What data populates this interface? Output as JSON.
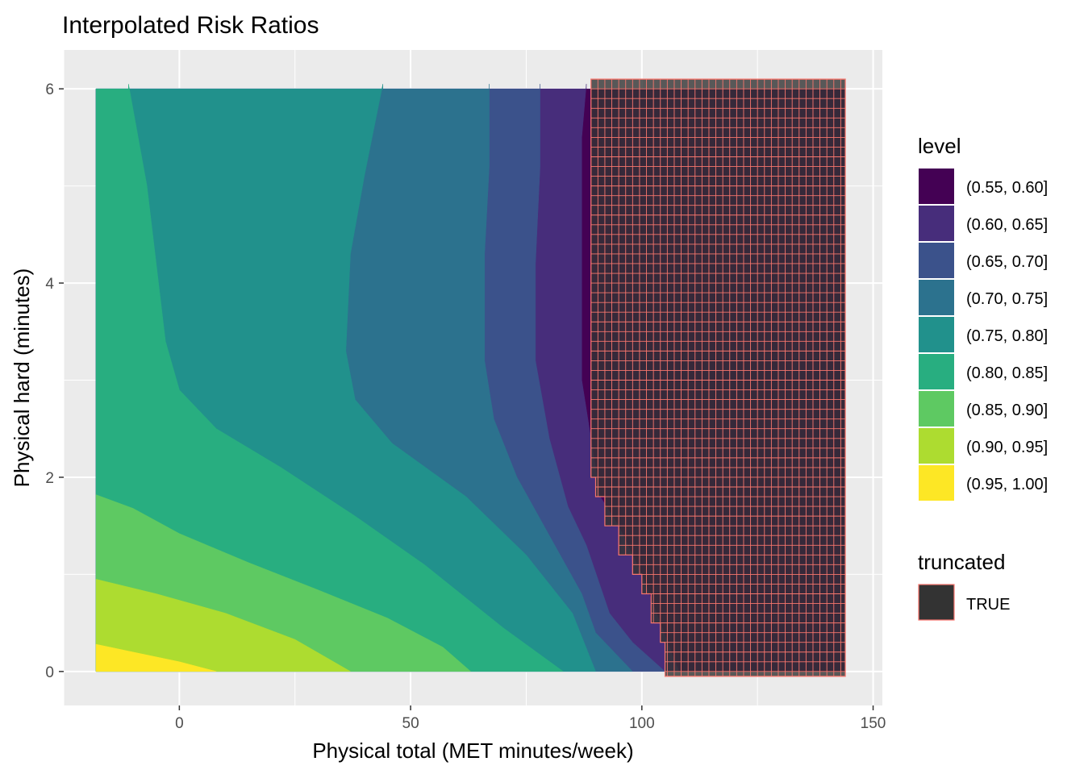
{
  "chart_data": {
    "type": "contour",
    "title": "Interpolated Risk Ratios",
    "xlabel": "Physical total (MET minutes/week)",
    "ylabel": "Physical hard (minutes)",
    "xlim": [
      -25,
      152
    ],
    "ylim": [
      -0.35,
      6.4
    ],
    "data_extent": {
      "x": [
        -18,
        144
      ],
      "y": [
        0,
        6
      ]
    },
    "x_ticks": [
      0,
      50,
      100,
      150
    ],
    "x_tick_labels": [
      "0",
      "50",
      "100",
      "150"
    ],
    "y_ticks": [
      0,
      2,
      4,
      6
    ],
    "y_tick_labels": [
      "0",
      "2",
      "4",
      "6"
    ],
    "grid": true,
    "panel_background": "#ebebeb",
    "legend_position": "right",
    "fill_legend": {
      "title": "level",
      "entries": [
        {
          "label": "(0.55, 0.60]",
          "color": "#440154"
        },
        {
          "label": "(0.60, 0.65]",
          "color": "#472d7b"
        },
        {
          "label": "(0.65, 0.70]",
          "color": "#3b528b"
        },
        {
          "label": "(0.70, 0.75]",
          "color": "#2c728e"
        },
        {
          "label": "(0.75, 0.80]",
          "color": "#21918c"
        },
        {
          "label": "(0.80, 0.85]",
          "color": "#28ae80"
        },
        {
          "label": "(0.85, 0.90]",
          "color": "#5ec962"
        },
        {
          "label": "(0.90, 0.95]",
          "color": "#addc30"
        },
        {
          "label": "(0.95, 1.00]",
          "color": "#fde725"
        }
      ]
    },
    "truncated_legend": {
      "title": "truncated",
      "entries": [
        {
          "label": "TRUE",
          "color": "#333333",
          "outline": "#f8766d"
        }
      ]
    },
    "contour_bands": [
      {
        "level": "(0.95, 1.00]",
        "color": "#fde725",
        "left": [
          [
            -18,
            0.3
          ],
          [
            -18,
            6
          ]
        ],
        "right": [
          [
            -18,
            0.28
          ],
          [
            -10,
            0.2
          ],
          [
            0,
            0.1
          ],
          [
            8,
            0
          ]
        ]
      },
      {
        "level": "(0.90, 0.95]",
        "color": "#addc30",
        "right": [
          [
            -18,
            0.95
          ],
          [
            -5,
            0.8
          ],
          [
            10,
            0.6
          ],
          [
            25,
            0.33
          ],
          [
            37,
            0
          ]
        ]
      },
      {
        "level": "(0.85, 0.90]",
        "color": "#5ec962",
        "right": [
          [
            -18,
            1.82
          ],
          [
            -10,
            1.68
          ],
          [
            0,
            1.42
          ],
          [
            15,
            1.12
          ],
          [
            30,
            0.84
          ],
          [
            45,
            0.55
          ],
          [
            57,
            0.25
          ],
          [
            63,
            0
          ]
        ]
      },
      {
        "level": "(0.80, 0.85]",
        "color": "#28ae80",
        "right": [
          [
            -11,
            6.05
          ],
          [
            -7,
            5.0
          ],
          [
            -5,
            4.2
          ],
          [
            -3,
            3.4
          ],
          [
            0,
            2.9
          ],
          [
            8,
            2.5
          ],
          [
            22,
            2.1
          ],
          [
            38,
            1.6
          ],
          [
            53,
            1.1
          ],
          [
            70,
            0.45
          ],
          [
            83,
            0
          ]
        ]
      },
      {
        "level": "(0.75, 0.80]",
        "color": "#21918c",
        "right": [
          [
            44,
            6.05
          ],
          [
            40,
            5.1
          ],
          [
            37,
            4.3
          ],
          [
            36,
            3.3
          ],
          [
            38,
            2.8
          ],
          [
            46,
            2.35
          ],
          [
            62,
            1.8
          ],
          [
            75,
            1.2
          ],
          [
            85,
            0.6
          ],
          [
            90,
            0
          ]
        ]
      },
      {
        "level": "(0.70, 0.75]",
        "color": "#2c728e",
        "right": [
          [
            67,
            6.05
          ],
          [
            67,
            5.2
          ],
          [
            66,
            4.3
          ],
          [
            66,
            3.2
          ],
          [
            68,
            2.6
          ],
          [
            73,
            2.0
          ],
          [
            80,
            1.4
          ],
          [
            87,
            0.8
          ],
          [
            90,
            0.4
          ],
          [
            98,
            0
          ]
        ]
      },
      {
        "level": "(0.65, 0.70]",
        "color": "#3b528b",
        "right": [
          [
            78,
            6.05
          ],
          [
            78,
            5.2
          ],
          [
            77,
            4.2
          ],
          [
            77,
            3.2
          ],
          [
            80,
            2.4
          ],
          [
            84,
            1.7
          ],
          [
            88,
            1.3
          ],
          [
            93,
            0.6
          ],
          [
            98,
            0.3
          ],
          [
            105,
            0
          ]
        ]
      },
      {
        "level": "(0.60, 0.65]",
        "color": "#472d7b",
        "right": [
          [
            88,
            6.05
          ],
          [
            87,
            5.5
          ],
          [
            87,
            4.0
          ],
          [
            87,
            3.0
          ],
          [
            89,
            2.4
          ],
          [
            91,
            1.8
          ],
          [
            95,
            1.5
          ],
          [
            100,
            1.0
          ],
          [
            104,
            0.5
          ],
          [
            108,
            0
          ]
        ]
      },
      {
        "level": "(0.55, 0.60]",
        "color": "#440154",
        "right": "extent"
      }
    ],
    "truncated_region": {
      "fill": "#333333",
      "fill_opacity": 0.8,
      "outline": "#f8766d",
      "x_step": 1.5,
      "y_step": 0.1,
      "profile": [
        [
          2.0,
          89
        ],
        [
          1.8,
          90
        ],
        [
          1.5,
          92
        ],
        [
          1.2,
          95
        ],
        [
          1.0,
          98
        ],
        [
          0.8,
          100
        ],
        [
          0.5,
          102
        ],
        [
          0.3,
          104
        ],
        [
          -0.05,
          105
        ]
      ],
      "top": 6.1,
      "right": 144
    }
  }
}
